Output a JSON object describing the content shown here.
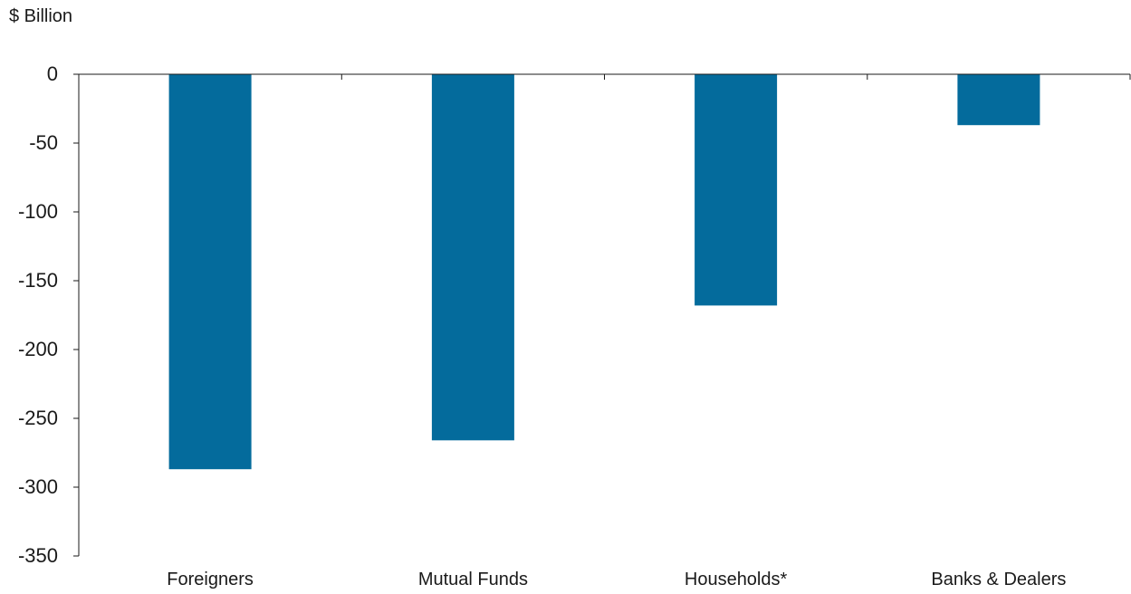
{
  "chart_data": {
    "type": "bar",
    "title": "",
    "ylabel": "$ Billion",
    "xlabel": "",
    "categories": [
      "Foreigners",
      "Mutual Funds",
      "Households*",
      "Banks & Dealers"
    ],
    "values": [
      -287,
      -266,
      -168,
      -37
    ],
    "ylim": [
      -350,
      0
    ],
    "yticks": [
      0,
      -50,
      -100,
      -150,
      -200,
      -250,
      -300,
      -350
    ],
    "ytick_labels": [
      "0",
      "-50",
      "-100",
      "-150",
      "-200",
      "-250",
      "-300",
      "-350"
    ],
    "bar_color": "#046B9C",
    "axis_color": "#1a1a1a",
    "grid": false,
    "legend": "none"
  }
}
